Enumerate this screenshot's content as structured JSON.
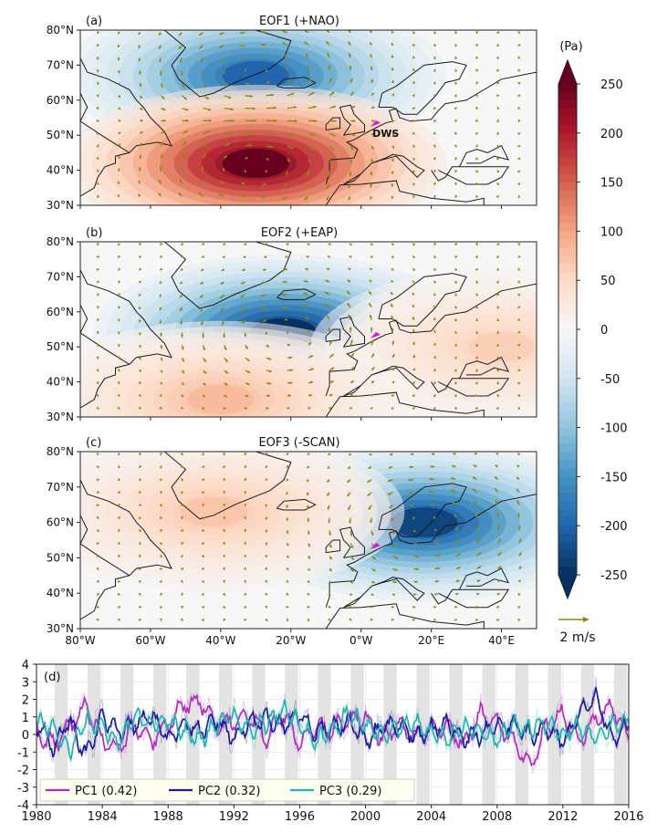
{
  "chart_data": [
    {
      "type": "heatmap",
      "panel": "(a)",
      "title": "EOF1 (+NAO)",
      "lon_ticks": [
        "80°W",
        "60°W",
        "40°W",
        "20°W",
        "0°W",
        "20°E",
        "40°E"
      ],
      "lat_ticks": [
        "80°N",
        "70°N",
        "60°N",
        "50°N",
        "40°N",
        "30°N"
      ],
      "xlim": [
        -80,
        50
      ],
      "ylim": [
        30,
        80
      ],
      "marker_label": "DWS",
      "anomaly_centers": [
        {
          "lon": -30,
          "lat": 67,
          "value": -200
        },
        {
          "lon": -30,
          "lat": 42,
          "value": 250
        }
      ],
      "flow": [
        {
          "lon": -30,
          "lat": 67,
          "sense": "ccw"
        },
        {
          "lon": -30,
          "lat": 42,
          "sense": "cw"
        }
      ]
    },
    {
      "type": "heatmap",
      "panel": "(b)",
      "title": "EOF2 (+EAP)",
      "lon_ticks": [
        "80°W",
        "60°W",
        "40°W",
        "20°W",
        "0°W",
        "20°E",
        "40°E"
      ],
      "lat_ticks": [
        "80°N",
        "70°N",
        "60°N",
        "50°N",
        "40°N",
        "30°N"
      ],
      "xlim": [
        -80,
        50
      ],
      "ylim": [
        30,
        80
      ],
      "anomaly_centers": [
        {
          "lon": -22,
          "lat": 54,
          "value": -250
        },
        {
          "lon": 40,
          "lat": 50,
          "value": 60
        },
        {
          "lon": -40,
          "lat": 35,
          "value": 80
        }
      ],
      "flow": [
        {
          "lon": -22,
          "lat": 54,
          "sense": "ccw"
        }
      ]
    },
    {
      "type": "heatmap",
      "panel": "(c)",
      "title": "EOF3 (-SCAN)",
      "lon_ticks": [
        "80°W",
        "60°W",
        "40°W",
        "20°W",
        "0°W",
        "20°E",
        "40°E"
      ],
      "lat_ticks": [
        "80°N",
        "70°N",
        "60°N",
        "50°N",
        "40°N",
        "30°N"
      ],
      "xlim": [
        -80,
        50
      ],
      "ylim": [
        30,
        80
      ],
      "anomaly_centers": [
        {
          "lon": 18,
          "lat": 60,
          "value": -230
        },
        {
          "lon": -42,
          "lat": 63,
          "value": 70
        }
      ],
      "flow": [
        {
          "lon": 18,
          "lat": 60,
          "sense": "ccw"
        }
      ]
    },
    {
      "type": "colorbar",
      "unit": "(Pa)",
      "ticks": [
        250,
        200,
        150,
        100,
        50,
        0,
        -50,
        -100,
        -150,
        -200,
        -250
      ],
      "range": [
        -250,
        250
      ],
      "colors": [
        "#053061",
        "#2166ac",
        "#4393c3",
        "#92c5de",
        "#d1e5f0",
        "#f7f7f7",
        "#fddbc7",
        "#f4a582",
        "#d6604d",
        "#b2182b",
        "#67001f"
      ],
      "vector_key_label": "2 m/s"
    },
    {
      "type": "line",
      "panel": "(d)",
      "xlim": [
        1980,
        2016
      ],
      "ylim": [
        -4,
        4
      ],
      "x_ticks": [
        "1980",
        "1984",
        "1988",
        "1992",
        "1996",
        "2000",
        "2004",
        "2008",
        "2012",
        "2016"
      ],
      "y_ticks": [
        "4",
        "3",
        "2",
        "1",
        "0",
        "-1",
        "-2",
        "-3",
        "-4"
      ],
      "grid": true,
      "legend_position": "bottom-left",
      "winter_shading_years": [
        1980,
        1982,
        1984,
        1986,
        1988,
        1990,
        1992,
        1994,
        1996,
        1998,
        2000,
        2002,
        2004,
        2006,
        2008,
        2010,
        2012,
        2014
      ],
      "series": [
        {
          "name": "PC1 (0.42)",
          "color": "#b52bbf",
          "x": [
            1980,
            1981,
            1982,
            1983,
            1984,
            1985,
            1986,
            1987,
            1988,
            1989,
            1990,
            1991,
            1992,
            1993,
            1994,
            1995,
            1996,
            1997,
            1998,
            1999,
            2000,
            2001,
            2002,
            2003,
            2004,
            2005,
            2006,
            2007,
            2008,
            2009,
            2010,
            2011,
            2012,
            2013,
            2014,
            2015,
            2016
          ],
          "values": [
            0.2,
            -0.6,
            0.4,
            1.6,
            -0.3,
            -0.8,
            0.5,
            -0.4,
            0.6,
            1.7,
            1.8,
            0.3,
            0.9,
            1.0,
            -0.2,
            1.2,
            -0.5,
            0.4,
            0.2,
            0.9,
            1.1,
            -0.3,
            0.6,
            -0.1,
            0.3,
            0.5,
            -0.6,
            1.2,
            0.6,
            -0.3,
            -1.9,
            0.4,
            1.2,
            -0.5,
            1.0,
            1.6,
            -0.3
          ]
        },
        {
          "name": "PC2 (0.32)",
          "color": "#1c1c9c",
          "x": [
            1980,
            1981,
            1982,
            1983,
            1984,
            1985,
            1986,
            1987,
            1988,
            1989,
            1990,
            1991,
            1992,
            1993,
            1994,
            1995,
            1996,
            1997,
            1998,
            1999,
            2000,
            2001,
            2002,
            2003,
            2004,
            2005,
            2006,
            2007,
            2008,
            2009,
            2010,
            2011,
            2012,
            2013,
            2014,
            2015,
            2016
          ],
          "values": [
            0.6,
            -0.7,
            0.8,
            -1.2,
            0.9,
            0.2,
            0.6,
            1.0,
            -0.3,
            0.7,
            0.2,
            0.8,
            -0.2,
            0.6,
            0.9,
            0.4,
            1.2,
            0.1,
            0.5,
            0.7,
            -0.4,
            0.3,
            0.5,
            -0.1,
            0.3,
            0.6,
            -0.2,
            0.0,
            0.4,
            0.6,
            -0.1,
            0.3,
            -0.4,
            1.1,
            2.2,
            -0.2,
            0.5
          ]
        },
        {
          "name": "PC3 (0.29)",
          "color": "#1fb5b0",
          "x": [
            1980,
            1981,
            1982,
            1983,
            1984,
            1985,
            1986,
            1987,
            1988,
            1989,
            1990,
            1991,
            1992,
            1993,
            1994,
            1995,
            1996,
            1997,
            1998,
            1999,
            2000,
            2001,
            2002,
            2003,
            2004,
            2005,
            2006,
            2007,
            2008,
            2009,
            2010,
            2011,
            2012,
            2013,
            2014,
            2015,
            2016
          ],
          "values": [
            0.9,
            0.3,
            -0.9,
            0.8,
            0.4,
            -0.6,
            1.1,
            0.5,
            0.8,
            0.2,
            -0.3,
            0.6,
            1.0,
            0.3,
            0.7,
            1.4,
            0.6,
            -0.4,
            0.3,
            1.2,
            0.5,
            -0.2,
            0.4,
            0.6,
            0.1,
            -0.3,
            0.5,
            0.2,
            -0.4,
            0.6,
            0.3,
            0.8,
            0.0,
            0.5,
            -0.2,
            0.4,
            0.6
          ]
        }
      ]
    }
  ]
}
